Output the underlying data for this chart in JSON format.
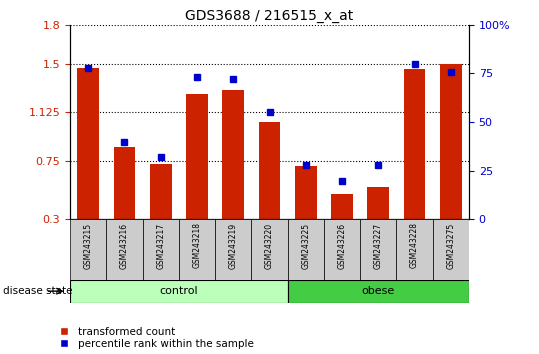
{
  "title": "GDS3688 / 216515_x_at",
  "samples": [
    "GSM243215",
    "GSM243216",
    "GSM243217",
    "GSM243218",
    "GSM243219",
    "GSM243220",
    "GSM243225",
    "GSM243226",
    "GSM243227",
    "GSM243228",
    "GSM243275"
  ],
  "transformed_count": [
    1.47,
    0.86,
    0.73,
    1.27,
    1.3,
    1.05,
    0.71,
    0.5,
    0.55,
    1.46,
    1.5
  ],
  "percentile_rank": [
    78,
    40,
    32,
    73,
    72,
    55,
    28,
    20,
    28,
    80,
    76
  ],
  "left_ylim": [
    0.3,
    1.8
  ],
  "right_ylim": [
    0,
    100
  ],
  "left_yticks": [
    0.3,
    0.75,
    1.125,
    1.5,
    1.8
  ],
  "right_yticks": [
    0,
    25,
    50,
    75,
    100
  ],
  "right_yticklabels": [
    "0",
    "25",
    "50",
    "75",
    "100%"
  ],
  "bar_color": "#cc2200",
  "dot_color": "#0000cc",
  "control_group_count": 6,
  "obese_group_count": 5,
  "control_color": "#bbffbb",
  "obese_color": "#44cc44",
  "label_bar": "transformed count",
  "label_dot": "percentile rank within the sample",
  "disease_state_label": "disease state",
  "left_tick_color": "#cc2200",
  "right_tick_color": "#0000cc",
  "sample_box_color": "#cccccc",
  "bar_bottom": 0.3
}
